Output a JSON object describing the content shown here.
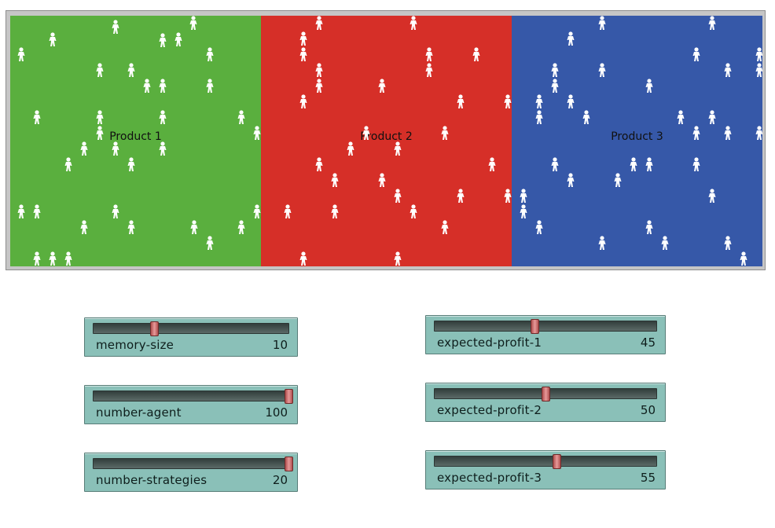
{
  "world": {
    "patches": [
      {
        "label": "Product 1",
        "color": "#5aaf3e"
      },
      {
        "label": "Product 2",
        "color": "#d62f28"
      },
      {
        "label": "Product 3",
        "color": "#3658a8"
      }
    ],
    "agent_icon": "person-icon",
    "agent_color": "#ffffff",
    "agent_count": 100
  },
  "sliders": [
    {
      "id": "memory-size",
      "label": "memory-size",
      "value": "10",
      "fraction": 0.31
    },
    {
      "id": "number-agent",
      "label": "number-agent",
      "value": "100",
      "fraction": 1.0
    },
    {
      "id": "number-strategies",
      "label": "number-strategies",
      "value": "20",
      "fraction": 1.0
    },
    {
      "id": "expected-profit-1",
      "label": "expected-profit-1",
      "value": "45",
      "fraction": 0.45
    },
    {
      "id": "expected-profit-2",
      "label": "expected-profit-2",
      "value": "50",
      "fraction": 0.5
    },
    {
      "id": "expected-profit-3",
      "label": "expected-profit-3",
      "value": "55",
      "fraction": 0.55
    }
  ]
}
